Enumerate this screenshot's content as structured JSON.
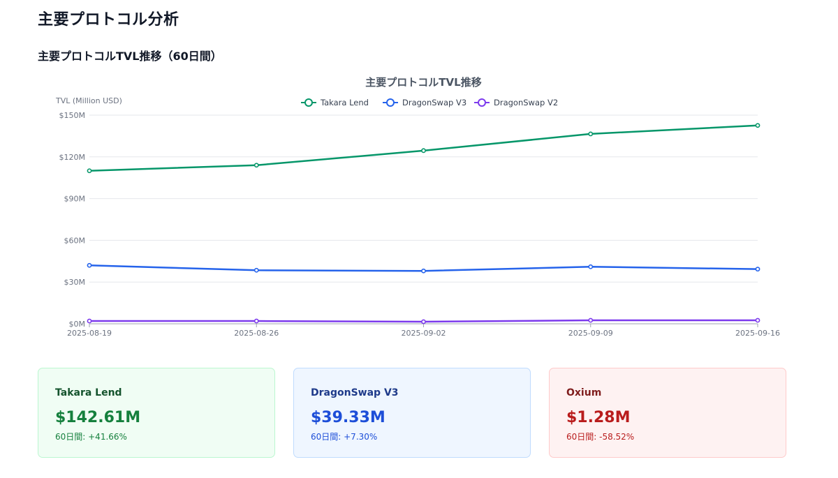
{
  "page": {
    "title": "主要プロトコル分析",
    "section_title": "主要プロトコルTVL推移（60日間）"
  },
  "colors": {
    "takara": "#059669",
    "dragonswap_v3": "#2563eb",
    "dragonswap_v2": "#7c3aed",
    "grid": "#e5e7eb",
    "axis_text": "#6b7280"
  },
  "chart_data": {
    "type": "line",
    "title": "主要プロトコルTVL推移",
    "ylabel": "TVL (Million USD)",
    "xlabel": "",
    "x": [
      "2025-08-19",
      "2025-08-26",
      "2025-09-02",
      "2025-09-09",
      "2025-09-16"
    ],
    "ylim": [
      0,
      150
    ],
    "yticks": [
      0,
      30,
      60,
      90,
      120,
      150
    ],
    "ytick_labels": [
      "$0M",
      "$30M",
      "$60M",
      "$90M",
      "$120M",
      "$150M"
    ],
    "grid": true,
    "legend_position": "top-center",
    "series": [
      {
        "name": "Takara Lend",
        "color": "#059669",
        "values": [
          110,
          114,
          124.5,
          136.5,
          142.6
        ]
      },
      {
        "name": "DragonSwap V3",
        "color": "#2563eb",
        "values": [
          42,
          38.5,
          38,
          41,
          39.3
        ]
      },
      {
        "name": "DragonSwap V2",
        "color": "#7c3aed",
        "values": [
          2,
          2,
          1.5,
          2.5,
          2.5
        ]
      }
    ]
  },
  "cards": [
    {
      "name": "Takara Lend",
      "value": "$142.61M",
      "change": "60日間: +41.66%"
    },
    {
      "name": "DragonSwap V3",
      "value": "$39.33M",
      "change": "60日間: +7.30%"
    },
    {
      "name": "Oxium",
      "value": "$1.28M",
      "change": "60日間: -58.52%"
    }
  ]
}
